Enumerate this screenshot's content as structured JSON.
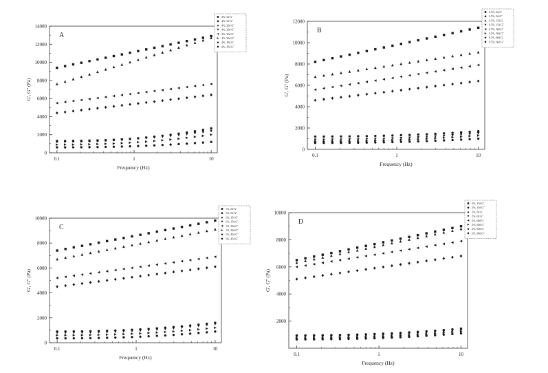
{
  "chart_data": [
    {
      "type": "scatter",
      "panel_label": "A",
      "xlabel": "Frequency (Hz)",
      "ylabel": "G', G'' (Pa)",
      "x_scale": "log",
      "xlim": [
        0.08,
        12
      ],
      "ylim": [
        0,
        14000
      ],
      "x_ticks": [
        0.1,
        1,
        10
      ],
      "y_ticks": [
        0,
        2000,
        4000,
        6000,
        8000,
        10000,
        12000,
        14000
      ],
      "legend_position": "top-right",
      "series": [
        {
          "name": "4%, 5d G'",
          "marker": "square",
          "start": 9400,
          "end": 12900
        },
        {
          "name": "4%, 5d G''",
          "marker": "circle",
          "start": 1250,
          "end": 2700
        },
        {
          "name": "4%, 20d G'",
          "marker": "triangle-up",
          "start": 7600,
          "end": 12700
        },
        {
          "name": "4%, 20d G''",
          "marker": "triangle-down",
          "start": 1300,
          "end": 2400
        },
        {
          "name": "4%, 30d G'",
          "marker": "triangle-left",
          "start": 5500,
          "end": 7600
        },
        {
          "name": "4%, 30d G''",
          "marker": "triangle-right",
          "start": 900,
          "end": 2000
        },
        {
          "name": "4%, 45d G'",
          "marker": "diamond",
          "start": 4400,
          "end": 6400
        },
        {
          "name": "4%, 45d G''",
          "marker": "hexagon",
          "start": 600,
          "end": 1200
        }
      ]
    },
    {
      "type": "scatter",
      "panel_label": "B",
      "xlabel": "Frequency (Hz)",
      "ylabel": "G', G'' (Pa)",
      "x_scale": "log",
      "xlim": [
        0.08,
        12
      ],
      "ylim": [
        0,
        12000
      ],
      "x_ticks": [
        0.1,
        1,
        10
      ],
      "y_ticks": [
        0,
        2000,
        4000,
        6000,
        8000,
        10000,
        12000
      ],
      "legend_position": "top-right",
      "series": [
        {
          "name": "0.5%, 0d G'",
          "marker": "square",
          "start": 8200,
          "end": 11400
        },
        {
          "name": "0.5%, 0d G''",
          "marker": "circle",
          "start": 1200,
          "end": 1700
        },
        {
          "name": "0.5%, 15d G'",
          "marker": "triangle-up",
          "start": 6800,
          "end": 9100
        },
        {
          "name": "0.5%, 15d G''",
          "marker": "triangle-down",
          "start": 900,
          "end": 1500
        },
        {
          "name": "0.5%, 30d G'",
          "marker": "triangle-left",
          "start": 5600,
          "end": 7900
        },
        {
          "name": "0.5%, 30d G''",
          "marker": "triangle-right",
          "start": 750,
          "end": 1300
        },
        {
          "name": "0.5%, 60d G'",
          "marker": "diamond",
          "start": 4600,
          "end": 6400
        },
        {
          "name": "0.5%, 60d G''",
          "marker": "hexagon",
          "start": 600,
          "end": 1000
        }
      ]
    },
    {
      "type": "scatter",
      "panel_label": "C",
      "xlabel": "Frequency (Hz)",
      "ylabel": "G', G'' (Pa)",
      "x_scale": "log",
      "xlim": [
        0.08,
        12
      ],
      "ylim": [
        0,
        10000
      ],
      "x_ticks": [
        0.1,
        1,
        10
      ],
      "y_ticks": [
        0,
        2000,
        4000,
        6000,
        8000,
        10000
      ],
      "legend_position": "top-right",
      "series": [
        {
          "name": "1%, 0d G'",
          "marker": "square",
          "start": 7400,
          "end": 9800
        },
        {
          "name": "1%, 0d G''",
          "marker": "circle",
          "start": 900,
          "end": 1600
        },
        {
          "name": "1%, 15d G'",
          "marker": "triangle-up",
          "start": 6700,
          "end": 9100
        },
        {
          "name": "1%, 15d G''",
          "marker": "triangle-down",
          "start": 800,
          "end": 1500
        },
        {
          "name": "1%, 30d G'",
          "marker": "triangle-left",
          "start": 5200,
          "end": 6900
        },
        {
          "name": "1%, 30d G''",
          "marker": "triangle-right",
          "start": 600,
          "end": 1200
        },
        {
          "name": "1%, 45d G'",
          "marker": "diamond",
          "start": 4500,
          "end": 6100
        },
        {
          "name": "1%, 45d G''",
          "marker": "hexagon",
          "start": 350,
          "end": 900
        }
      ]
    },
    {
      "type": "scatter",
      "panel_label": "D",
      "xlabel": "Frequency (Hz)",
      "ylabel": "G', G'' (Pa)",
      "x_scale": "log",
      "xlim": [
        0.08,
        12
      ],
      "ylim": [
        0,
        10000
      ],
      "x_ticks": [
        0.1,
        1,
        10
      ],
      "y_ticks": [
        2000,
        4000,
        6000,
        8000,
        10000
      ],
      "legend_position": "top-right",
      "series": [
        {
          "name": "2%, 15d G'",
          "marker": "square",
          "start": 6500,
          "end": 9000
        },
        {
          "name": "2%, 15d G''",
          "marker": "circle",
          "start": 950,
          "end": 1450
        },
        {
          "name": "2%, 0d G'",
          "marker": "triangle-up",
          "start": 6300,
          "end": 8800
        },
        {
          "name": "2%, 0d G''",
          "marker": "triangle-down",
          "start": 850,
          "end": 1350
        },
        {
          "name": "2%, 60d G'",
          "marker": "triangle-left",
          "start": 6000,
          "end": 7900
        },
        {
          "name": "2%, 60d G''",
          "marker": "triangle-right",
          "start": 750,
          "end": 1250
        },
        {
          "name": "2%, 90d G'",
          "marker": "diamond",
          "start": 5100,
          "end": 6800
        },
        {
          "name": "2%, 90d G''",
          "marker": "hexagon",
          "start": 650,
          "end": 1100
        }
      ]
    }
  ]
}
